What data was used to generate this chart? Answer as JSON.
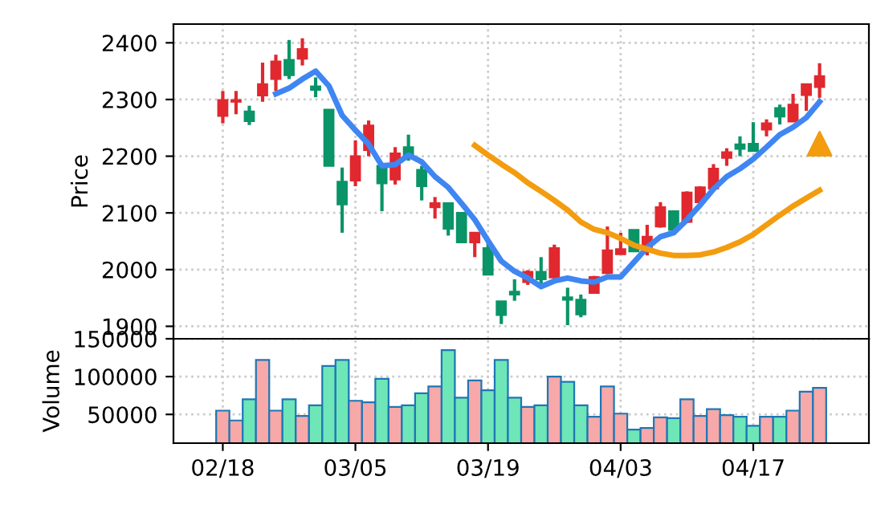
{
  "chart_data": [
    {
      "type": "candlestick",
      "ylabel": "Price",
      "ylim": [
        1878,
        2433
      ],
      "yticks": [
        1900,
        2000,
        2100,
        2200,
        2300,
        2400
      ],
      "grid": true,
      "tick_labels": "y",
      "categories": [
        null,
        null,
        null,
        null,
        null,
        null,
        null,
        null,
        null,
        null,
        null,
        null,
        null,
        null,
        null,
        null,
        null,
        null,
        null,
        null,
        null,
        null,
        null,
        null,
        null,
        null,
        null,
        null,
        null,
        null,
        null,
        null,
        null,
        null,
        null,
        null,
        null,
        null,
        null,
        null,
        null,
        null,
        null,
        null,
        null,
        null
      ],
      "ohlc": [
        [
          2271,
          2315,
          2258,
          2299
        ],
        [
          2296,
          2315,
          2274,
          2299
        ],
        [
          2279,
          2289,
          2255,
          2262
        ],
        [
          2307,
          2365,
          2296,
          2327
        ],
        [
          2336,
          2379,
          2315,
          2367
        ],
        [
          2370,
          2405,
          2336,
          2343
        ],
        [
          2372,
          2408,
          2360,
          2389
        ],
        [
          2323,
          2339,
          2304,
          2317
        ],
        [
          2282,
          2282,
          2183,
          2183
        ],
        [
          2155,
          2180,
          2065,
          2115
        ],
        [
          2157,
          2228,
          2147,
          2200
        ],
        [
          2211,
          2263,
          2200,
          2254
        ],
        [
          2183,
          2188,
          2103,
          2152
        ],
        [
          2159,
          2216,
          2150,
          2205
        ],
        [
          2216,
          2238,
          2192,
          2200
        ],
        [
          2176,
          2183,
          2122,
          2147
        ],
        [
          2110,
          2128,
          2090,
          2117
        ],
        [
          2117,
          2117,
          2060,
          2072
        ],
        [
          2100,
          2100,
          2048,
          2048
        ],
        [
          2048,
          2065,
          2022,
          2065
        ],
        [
          2038,
          2053,
          1991,
          1991
        ],
        [
          1944,
          1944,
          1904,
          1920
        ],
        [
          1961,
          1983,
          1945,
          1956
        ],
        [
          1978,
          1999,
          1973,
          1996
        ],
        [
          1996,
          2022,
          1975,
          1983
        ],
        [
          1986,
          2044,
          1985,
          2038
        ],
        [
          1951,
          1968,
          1902,
          1947
        ],
        [
          1947,
          1956,
          1916,
          1921
        ],
        [
          1959,
          1989,
          1959,
          1987
        ],
        [
          1994,
          2076,
          1992,
          2034
        ],
        [
          2027,
          2065,
          2027,
          2036
        ],
        [
          2070,
          2070,
          2032,
          2032
        ],
        [
          2032,
          2079,
          2025,
          2058
        ],
        [
          2076,
          2119,
          2074,
          2110
        ],
        [
          2103,
          2103,
          2067,
          2070
        ],
        [
          2084,
          2138,
          2082,
          2136
        ],
        [
          2119,
          2147,
          2117,
          2145
        ],
        [
          2143,
          2186,
          2140,
          2178
        ],
        [
          2197,
          2214,
          2183,
          2207
        ],
        [
          2221,
          2235,
          2200,
          2213
        ],
        [
          2222,
          2260,
          2209,
          2209
        ],
        [
          2247,
          2265,
          2235,
          2258
        ],
        [
          2285,
          2291,
          2256,
          2270
        ],
        [
          2261,
          2310,
          2261,
          2291
        ],
        [
          2308,
          2327,
          2280,
          2327
        ],
        [
          2322,
          2364,
          2303,
          2341
        ]
      ],
      "colors": [
        "#e0282e",
        "#e0282e",
        "#0a9467",
        "#e0282e",
        "#e0282e",
        "#0a9467",
        "#e0282e",
        "#0a9467",
        "#0a9467",
        "#0a9467",
        "#e0282e",
        "#e0282e",
        "#0a9467",
        "#e0282e",
        "#0a9467",
        "#0a9467",
        "#e0282e",
        "#0a9467",
        "#0a9467",
        "#e0282e",
        "#0a9467",
        "#0a9467",
        "#0a9467",
        "#e0282e",
        "#0a9467",
        "#e0282e",
        "#0a9467",
        "#0a9467",
        "#e0282e",
        "#e0282e",
        "#e0282e",
        "#0a9467",
        "#e0282e",
        "#e0282e",
        "#0a9467",
        "#e0282e",
        "#e0282e",
        "#e0282e",
        "#e0282e",
        "#0a9467",
        "#0a9467",
        "#e0282e",
        "#0a9467",
        "#e0282e",
        "#e0282e",
        "#e0282e"
      ],
      "series": [
        {
          "type": "line",
          "color": "#3f86f2",
          "values": [
            null,
            null,
            null,
            null,
            2310,
            2320,
            2336,
            2350,
            2324,
            2272,
            2246,
            2221,
            2183,
            2185,
            2202,
            2190,
            2164,
            2145,
            2117,
            2088,
            2051,
            2015,
            1997,
            1985,
            1970,
            1980,
            1985,
            1980,
            1978,
            1987,
            1987,
            2013,
            2039,
            2058,
            2065,
            2088,
            2114,
            2142,
            2164,
            2178,
            2195,
            2216,
            2238,
            2251,
            2268,
            2296
          ]
        },
        {
          "type": "line",
          "color": "#f39c0f",
          "values": [
            null,
            null,
            null,
            null,
            null,
            null,
            null,
            null,
            null,
            null,
            null,
            null,
            null,
            null,
            null,
            null,
            null,
            null,
            null,
            2219,
            2202,
            2186,
            2171,
            2153,
            2138,
            2122,
            2105,
            2084,
            2071,
            2065,
            2055,
            2043,
            2036,
            2029,
            2025,
            2025,
            2026,
            2031,
            2039,
            2049,
            2062,
            2079,
            2096,
            2112,
            2126,
            2140
          ]
        },
        {
          "type": "scatter",
          "color": "#f39c0f",
          "marker": "triangle",
          "values": [
            null,
            null,
            null,
            null,
            null,
            null,
            null,
            null,
            null,
            null,
            null,
            null,
            null,
            null,
            null,
            null,
            null,
            null,
            null,
            null,
            null,
            null,
            null,
            null,
            null,
            null,
            null,
            null,
            null,
            null,
            null,
            null,
            null,
            null,
            null,
            null,
            null,
            null,
            null,
            null,
            null,
            null,
            null,
            null,
            null,
            2222
          ]
        }
      ]
    },
    {
      "type": "bar",
      "ylabel": "Volume",
      "ylim": [
        12000,
        150000
      ],
      "yticks": [
        50000,
        100000,
        150000
      ],
      "grid": true,
      "categories": [
        "02/18",
        null,
        null,
        null,
        null,
        null,
        null,
        null,
        null,
        null,
        "03/05",
        null,
        null,
        null,
        null,
        null,
        null,
        null,
        null,
        null,
        "03/19",
        null,
        null,
        null,
        null,
        null,
        null,
        null,
        null,
        null,
        "04/03",
        null,
        null,
        null,
        null,
        null,
        null,
        null,
        null,
        null,
        "04/17",
        null,
        null,
        null,
        null,
        null
      ],
      "values": [
        55000,
        42000,
        70000,
        122000,
        55000,
        70000,
        48000,
        62000,
        114000,
        122000,
        68000,
        66000,
        97000,
        60000,
        62000,
        78000,
        87000,
        135000,
        72000,
        95000,
        82000,
        122000,
        72000,
        60000,
        62000,
        100000,
        93000,
        62000,
        47000,
        87000,
        51000,
        30000,
        32000,
        46000,
        45000,
        70000,
        48000,
        57000,
        49000,
        47000,
        35000,
        47000,
        47000,
        55000,
        80000,
        85000
      ],
      "colors": [
        "#f7a8a8",
        "#f7a8a8",
        "#6ee6b8",
        "#f7a8a8",
        "#f7a8a8",
        "#6ee6b8",
        "#f7a8a8",
        "#6ee6b8",
        "#6ee6b8",
        "#6ee6b8",
        "#f7a8a8",
        "#f7a8a8",
        "#6ee6b8",
        "#f7a8a8",
        "#6ee6b8",
        "#6ee6b8",
        "#f7a8a8",
        "#6ee6b8",
        "#6ee6b8",
        "#f7a8a8",
        "#6ee6b8",
        "#6ee6b8",
        "#6ee6b8",
        "#f7a8a8",
        "#6ee6b8",
        "#f7a8a8",
        "#6ee6b8",
        "#6ee6b8",
        "#f7a8a8",
        "#f7a8a8",
        "#f7a8a8",
        "#6ee6b8",
        "#f7a8a8",
        "#f7a8a8",
        "#6ee6b8",
        "#f7a8a8",
        "#f7a8a8",
        "#f7a8a8",
        "#f7a8a8",
        "#6ee6b8",
        "#6ee6b8",
        "#f7a8a8",
        "#6ee6b8",
        "#f7a8a8",
        "#f7a8a8",
        "#f7a8a8"
      ]
    }
  ]
}
